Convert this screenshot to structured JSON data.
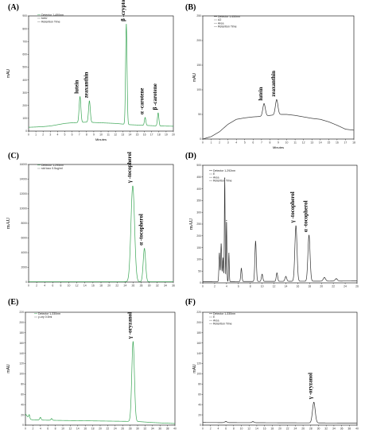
{
  "chart_data": [
    {
      "id": "A",
      "type": "line",
      "panel_label": "(A)",
      "ylabel": "mAU",
      "xlabel": "Minutes",
      "legend": [
        "Detector 1-450nm",
        "tubU",
        "Retention Time"
      ],
      "xlim": [
        0,
        20
      ],
      "ylim": [
        0,
        900
      ],
      "xticks": [
        0,
        1,
        2,
        3,
        4,
        5,
        6,
        7,
        8,
        9,
        10,
        11,
        12,
        13,
        14,
        15,
        16,
        17,
        18,
        19,
        20
      ],
      "yticks": [
        0,
        100,
        200,
        300,
        400,
        500,
        600,
        700,
        800,
        900
      ],
      "line_color": "#3aa655",
      "baseline": [
        [
          0,
          30
        ],
        [
          1,
          32
        ],
        [
          2,
          35
        ],
        [
          3,
          40
        ],
        [
          4,
          50
        ],
        [
          5,
          60
        ],
        [
          6,
          65
        ],
        [
          8,
          70
        ],
        [
          10,
          65
        ],
        [
          12,
          60
        ],
        [
          14,
          50
        ],
        [
          16,
          45
        ],
        [
          18,
          40
        ],
        [
          20,
          38
        ]
      ],
      "peaks": [
        {
          "name": "lutein",
          "x": 7.1,
          "y": 200,
          "w": 0.12
        },
        {
          "name": "zeaxanthin",
          "x": 8.4,
          "y": 165,
          "w": 0.12
        },
        {
          "name": "β -cryptoxanthin",
          "x": 13.5,
          "y": 780,
          "w": 0.1
        },
        {
          "name": "α -carotene",
          "x": 16.1,
          "y": 60,
          "w": 0.1
        },
        {
          "name": "β -carotene",
          "x": 17.9,
          "y": 100,
          "w": 0.1
        }
      ]
    },
    {
      "id": "B",
      "type": "line",
      "panel_label": "(B)",
      "ylabel": "mAU",
      "xlabel": "Minutes",
      "legend": [
        "Detector 1-450nm",
        "A2",
        "Area",
        "Retention Time"
      ],
      "xlim": [
        0,
        18
      ],
      "ylim": [
        0,
        250
      ],
      "xticks": [
        0,
        1,
        2,
        3,
        4,
        5,
        6,
        7,
        8,
        9,
        10,
        11,
        12,
        13,
        14,
        15,
        16,
        17,
        18
      ],
      "yticks": [
        0,
        50,
        100,
        150,
        200,
        250
      ],
      "line_color": "#333333",
      "baseline": [
        [
          0,
          0
        ],
        [
          1,
          5
        ],
        [
          2,
          15
        ],
        [
          3,
          30
        ],
        [
          4,
          40
        ],
        [
          5,
          43
        ],
        [
          6,
          45
        ],
        [
          7,
          46
        ],
        [
          8,
          48
        ],
        [
          9,
          50
        ],
        [
          10,
          50
        ],
        [
          11,
          48
        ],
        [
          12,
          45
        ],
        [
          13,
          42
        ],
        [
          14,
          40
        ],
        [
          15,
          35
        ],
        [
          16,
          28
        ],
        [
          17,
          20
        ],
        [
          18,
          18
        ]
      ],
      "peaks": [
        {
          "name": "lutein",
          "x": 7.3,
          "y": 25,
          "w": 0.15
        },
        {
          "name": "zeaxanthin",
          "x": 8.8,
          "y": 30,
          "w": 0.15
        }
      ]
    },
    {
      "id": "C",
      "type": "line",
      "panel_label": "(C)",
      "ylabel": "mAU",
      "xlabel": "",
      "legend": [
        "Detector 1-295nm",
        "std toco 0.5ug/ml"
      ],
      "xlim": [
        0,
        36
      ],
      "ylim": [
        0,
        16000
      ],
      "xticks": [
        0,
        2,
        4,
        6,
        8,
        10,
        12,
        14,
        16,
        18,
        20,
        22,
        24,
        26,
        28,
        30,
        32,
        34,
        36
      ],
      "yticks": [
        0,
        2000,
        4000,
        6000,
        8000,
        10000,
        12000,
        14000,
        16000
      ],
      "line_color": "#3aa655",
      "baseline": [
        [
          0,
          50
        ],
        [
          36,
          50
        ]
      ],
      "peaks": [
        {
          "name": "γ -tocopherol",
          "x": 25.9,
          "y": 13000,
          "w": 0.45
        },
        {
          "name": "α -tocopherol",
          "x": 28.8,
          "y": 4500,
          "w": 0.3
        }
      ]
    },
    {
      "id": "D",
      "type": "line",
      "panel_label": "(D)",
      "ylabel": "mAU",
      "xlabel": "",
      "legend": [
        "Detector 1-292nm",
        "E",
        "Area",
        "Retention Time"
      ],
      "xlim": [
        0,
        26
      ],
      "ylim": [
        0,
        500
      ],
      "xticks": [
        0,
        2,
        4,
        6,
        8,
        10,
        12,
        14,
        16,
        18,
        20,
        22,
        24,
        26
      ],
      "yticks": [
        0,
        50,
        100,
        150,
        200,
        250,
        300,
        350,
        400,
        450,
        500
      ],
      "line_color": "#333333",
      "baseline": [
        [
          0,
          5
        ],
        [
          26,
          8
        ]
      ],
      "peaks": [
        {
          "x": 2.8,
          "y": 120,
          "w": 0.08
        },
        {
          "x": 3.1,
          "y": 160,
          "w": 0.08
        },
        {
          "x": 3.4,
          "y": 100,
          "w": 0.08
        },
        {
          "x": 3.7,
          "y": 440,
          "w": 0.06
        },
        {
          "x": 4.0,
          "y": 260,
          "w": 0.06
        },
        {
          "x": 4.4,
          "y": 120,
          "w": 0.06
        },
        {
          "x": 6.5,
          "y": 55,
          "w": 0.1
        },
        {
          "x": 8.9,
          "y": 170,
          "w": 0.12
        },
        {
          "x": 10.0,
          "y": 30,
          "w": 0.12
        },
        {
          "x": 12.5,
          "y": 35,
          "w": 0.12
        },
        {
          "x": 14.0,
          "y": 20,
          "w": 0.15
        },
        {
          "name": "γ -tocopherol",
          "x": 15.7,
          "y": 235,
          "w": 0.18
        },
        {
          "name": "α -tocopherol",
          "x": 17.9,
          "y": 195,
          "w": 0.18
        },
        {
          "x": 20.5,
          "y": 15,
          "w": 0.2
        },
        {
          "x": 22.5,
          "y": 10,
          "w": 0.2
        }
      ]
    },
    {
      "id": "E",
      "type": "line",
      "panel_label": "(E)",
      "ylabel": "mAU",
      "xlabel": "",
      "legend": [
        "Detector 1-330nm",
        "y-ory 0.5ml"
      ],
      "xlim": [
        0,
        40
      ],
      "ylim": [
        0,
        220
      ],
      "xticks": [
        0,
        2,
        4,
        6,
        8,
        10,
        12,
        14,
        16,
        18,
        20,
        22,
        24,
        26,
        28,
        30,
        32,
        34,
        36,
        38,
        40
      ],
      "yticks": [
        0,
        20,
        40,
        60,
        80,
        100,
        120,
        140,
        160,
        180,
        200,
        220
      ],
      "line_color": "#3aa655",
      "baseline": [
        [
          0,
          22
        ],
        [
          1,
          12
        ],
        [
          2,
          10
        ],
        [
          10,
          9
        ],
        [
          20,
          8
        ],
        [
          30,
          7
        ],
        [
          34,
          5
        ],
        [
          40,
          3
        ]
      ],
      "peaks": [
        {
          "x": 1.0,
          "y": 8,
          "w": 0.15
        },
        {
          "x": 4.0,
          "y": 5,
          "w": 0.2
        },
        {
          "x": 7.0,
          "y": 3,
          "w": 0.2
        },
        {
          "name": "γ -oryzanol",
          "x": 28.8,
          "y": 155,
          "w": 0.35
        }
      ]
    },
    {
      "id": "F",
      "type": "line",
      "panel_label": "(F)",
      "ylabel": "mAU",
      "xlabel": "",
      "legend": [
        "Detector 1-330nm",
        "E",
        "Area",
        "Retention Time"
      ],
      "xlim": [
        0,
        40
      ],
      "ylim": [
        0,
        220
      ],
      "xticks": [
        0,
        2,
        4,
        6,
        8,
        10,
        12,
        14,
        16,
        18,
        20,
        22,
        24,
        26,
        28,
        30,
        32,
        34,
        36,
        38,
        40
      ],
      "yticks": [
        0,
        20,
        40,
        60,
        80,
        100,
        120,
        140,
        160,
        180,
        200,
        220
      ],
      "line_color": "#333333",
      "baseline": [
        [
          0,
          5
        ],
        [
          40,
          4
        ]
      ],
      "peaks": [
        {
          "x": 6.0,
          "y": 2,
          "w": 0.3
        },
        {
          "x": 13.0,
          "y": 2,
          "w": 0.3
        },
        {
          "name": "γ -oryzanol",
          "x": 28.8,
          "y": 40,
          "w": 0.35
        }
      ]
    }
  ]
}
